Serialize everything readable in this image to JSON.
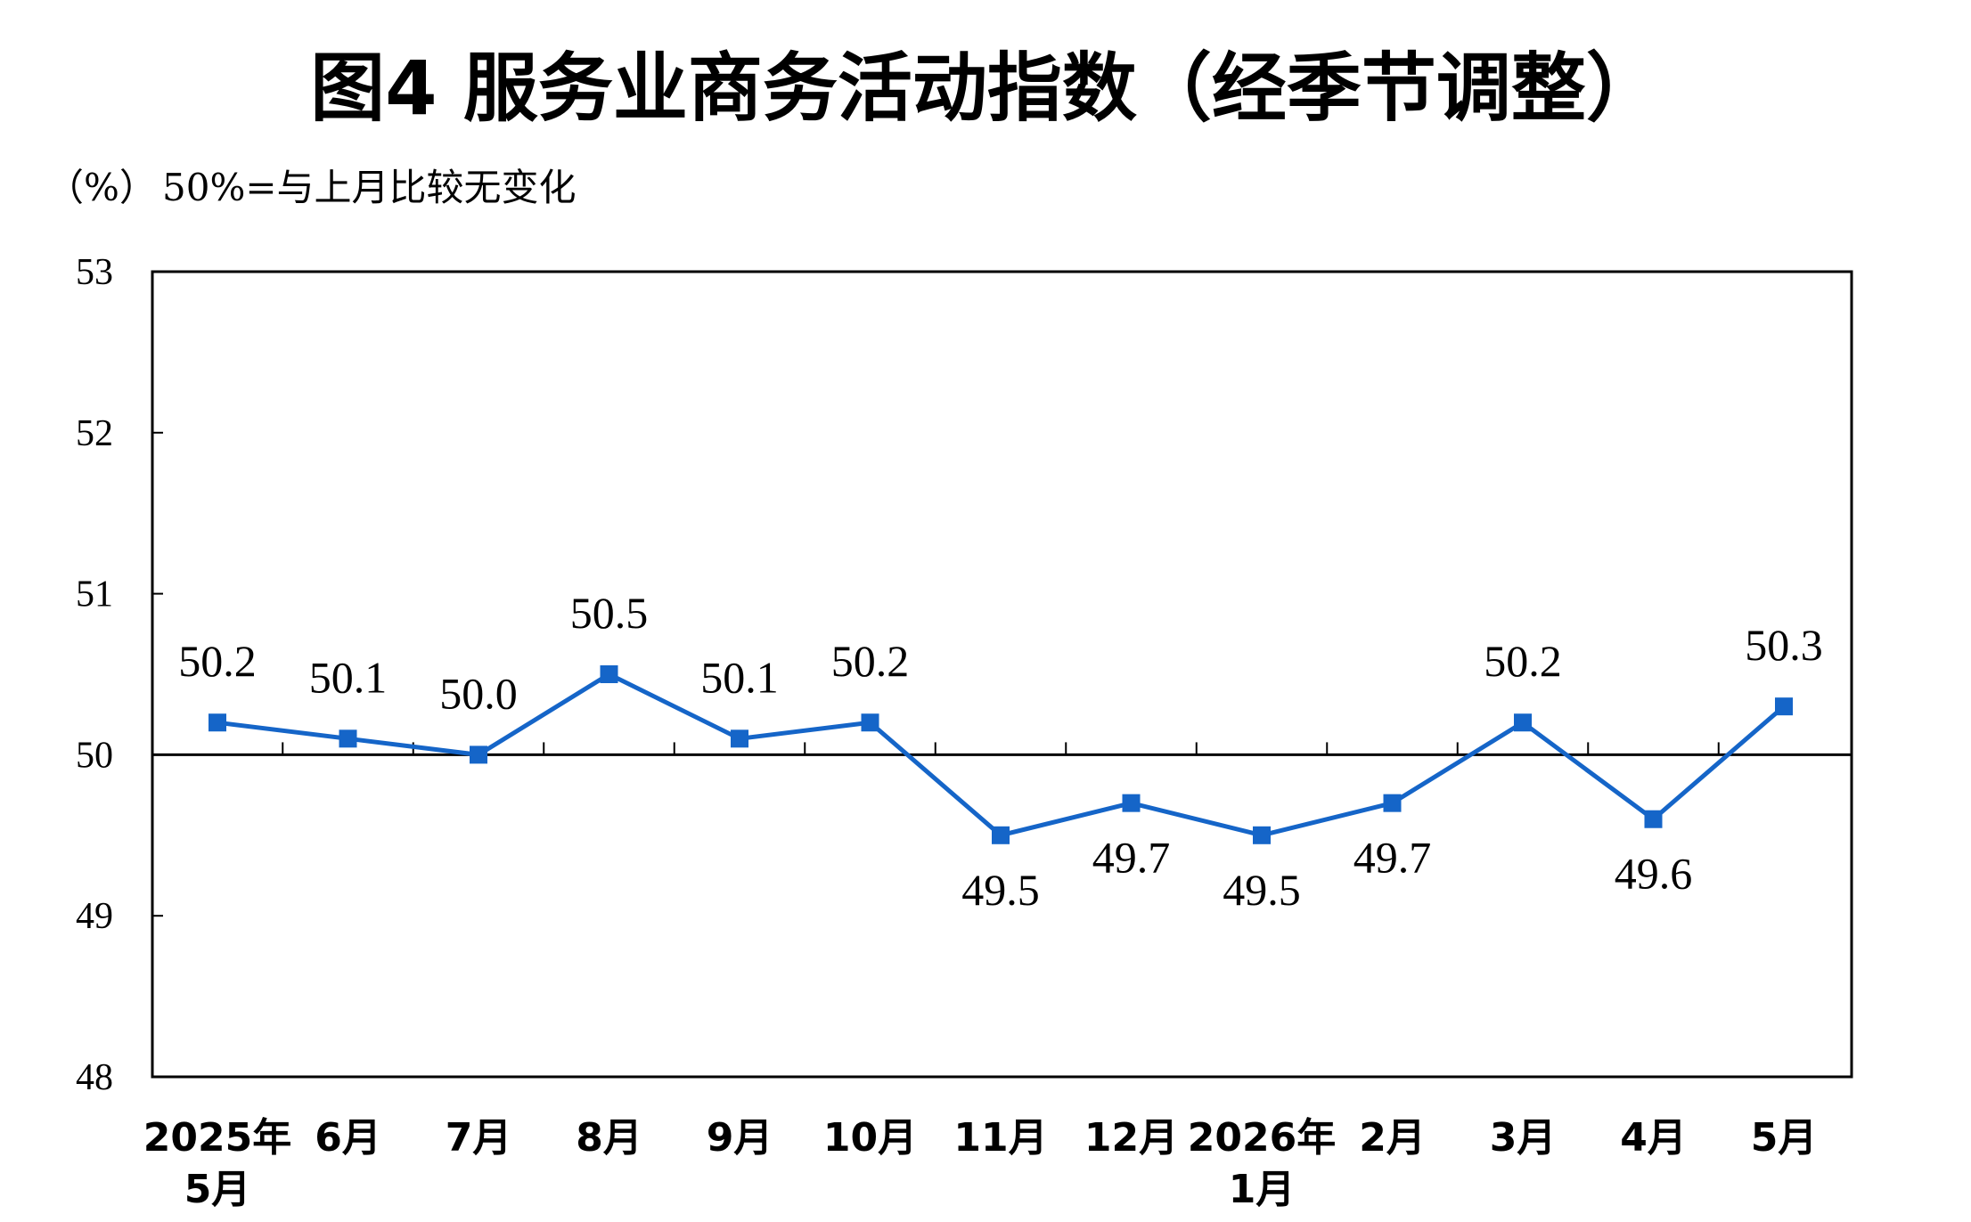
{
  "chart_data": {
    "type": "line",
    "title": "图4  服务业商务活动指数（经季节调整）",
    "unit_label": "（%）",
    "reference_note": "50%=与上月比较无变化",
    "categories": [
      [
        "2025年",
        "5月"
      ],
      [
        "6月"
      ],
      [
        "7月"
      ],
      [
        "8月"
      ],
      [
        "9月"
      ],
      [
        "10月"
      ],
      [
        "11月"
      ],
      [
        "12月"
      ],
      [
        "2026年",
        "1月"
      ],
      [
        "2月"
      ],
      [
        "3月"
      ],
      [
        "4月"
      ],
      [
        "5月"
      ]
    ],
    "series": [
      {
        "values": [
          50.2,
          50.1,
          50.0,
          50.5,
          50.1,
          50.2,
          49.5,
          49.7,
          49.5,
          49.7,
          50.2,
          49.6,
          50.3
        ],
        "data_labels": [
          "50.2",
          "50.1",
          "50.0",
          "50.5",
          "50.1",
          "50.2",
          "49.5",
          "49.7",
          "49.5",
          "49.7",
          "50.2",
          "49.6",
          "50.3"
        ]
      }
    ],
    "ylim": [
      48,
      53
    ],
    "yticks": [
      48,
      49,
      50,
      51,
      52,
      53
    ],
    "reference_line": 50,
    "grid": false,
    "legend": "none",
    "colors": {
      "series": "#1565C8",
      "axis": "#000000"
    }
  }
}
